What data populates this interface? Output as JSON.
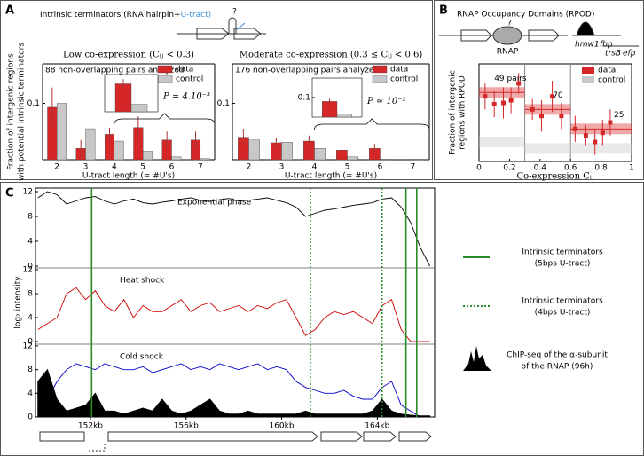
{
  "panels": {
    "a": {
      "label": "A",
      "heading": "Intrinsic terminators (RNA hairpin+",
      "heading_highlight": "U-tract)",
      "symbol": "?"
    },
    "b": {
      "label": "B",
      "heading": "RNAP Occupancy Domains (RPOD)",
      "symbol": "?",
      "rnap": "RNAP",
      "genes": [
        "hmw1",
        "fbp",
        "trsB",
        "efp"
      ]
    },
    "c": {
      "label": "C"
    }
  },
  "chart_data": [
    {
      "type": "bar",
      "title": "Low co-expression (Cᵢⱼ < 0.3)",
      "note": "88 non-overlapping pairs analyzed",
      "categories": [
        "2",
        "3",
        "4",
        "5",
        "6",
        "7"
      ],
      "series": [
        {
          "name": "data",
          "color": "#d62728",
          "values": [
            0.093,
            0.02,
            0.045,
            0.057,
            0.035,
            0.035
          ],
          "errors": [
            0.035,
            0.015,
            0.012,
            0.02,
            0.015,
            0.015
          ]
        },
        {
          "name": "control",
          "color": "#c8c8c8",
          "values": [
            0.1,
            0.055,
            0.033,
            0.015,
            0.005,
            0.002
          ]
        }
      ],
      "ylim": [
        0,
        0.17
      ],
      "yticks": [
        0.1
      ],
      "xlabel": "U-tract length (= #U's)",
      "ylabel": [
        "Fraction of intergenic regions",
        "with potential intrinsic terminators"
      ],
      "legend": "upper right",
      "inset": {
        "values": [
          0.15,
          0.04
        ],
        "errors": [
          0.025,
          0
        ],
        "ylim": [
          0,
          0.2
        ],
        "yticks": []
      },
      "p_value": "P ≃ 4.10⁻³"
    },
    {
      "type": "bar",
      "title": "Moderate co-expression (0.3 ≤ Cᵢⱼ < 0.6)",
      "note": "176 non-overlapping pairs analyzed",
      "categories": [
        "2",
        "3",
        "4",
        "5",
        "6",
        "7"
      ],
      "series": [
        {
          "name": "data",
          "color": "#d62728",
          "values": [
            0.04,
            0.03,
            0.033,
            0.017,
            0.02,
            0
          ],
          "errors": [
            0.015,
            0.008,
            0.01,
            0.008,
            0.008,
            0
          ]
        },
        {
          "name": "control",
          "color": "#c8c8c8",
          "values": [
            0.035,
            0.031,
            0.02,
            0.005,
            0.001,
            0.001
          ]
        }
      ],
      "ylim": [
        0,
        0.17
      ],
      "yticks": [
        0.1
      ],
      "xlabel": "U-tract length (= #U's)",
      "legend": "upper right",
      "inset": {
        "values": [
          0.08,
          0.015
        ],
        "errors": [
          0.015,
          0
        ],
        "ylim": [
          0,
          0.2
        ],
        "yticks": [
          0.1
        ]
      },
      "p_value": "P ≃ 10⁻²"
    },
    {
      "type": "scatter",
      "xlabel": "Co-expression Cᵢⱼ",
      "ylabel": [
        "Fraction of intergenic",
        "regions with RPOD"
      ],
      "x": [
        0.04,
        0.1,
        0.16,
        0.21,
        0.26,
        0.35,
        0.41,
        0.48,
        0.54,
        0.63,
        0.7,
        0.76,
        0.81,
        0.86
      ],
      "series": [
        {
          "name": "data",
          "color": "#d62728",
          "values": [
            0.5,
            0.44,
            0.45,
            0.47,
            0.6,
            0.4,
            0.35,
            0.5,
            0.35,
            0.25,
            0.2,
            0.15,
            0.22,
            0.3
          ],
          "errors": [
            0.1,
            0.1,
            0.12,
            0.1,
            0.08,
            0.08,
            0.12,
            0.12,
            0.1,
            0.1,
            0.08,
            0.1,
            0.1,
            0.1
          ],
          "domain_means": [
            0.53,
            0.4,
            0.25
          ]
        },
        {
          "name": "control",
          "color": "#c8c8c8",
          "domain_means": [
            0.15,
            0.1,
            0.1
          ]
        }
      ],
      "domains": [
        0,
        0.3,
        0.6,
        1
      ],
      "domain_labels": [
        "49 pairs",
        "70",
        "25"
      ],
      "xlim": [
        0,
        1
      ],
      "xticks": [
        0,
        0.2,
        0.4,
        0.6,
        0.8,
        1
      ],
      "ylim": [
        0,
        0.75
      ],
      "legend": "upper right"
    },
    {
      "type": "line",
      "ylabel": "log₂ intensity",
      "x": [
        149.8,
        150.2,
        150.6,
        151.0,
        151.4,
        151.8,
        152.2,
        152.6,
        153.0,
        153.4,
        153.8,
        154.2,
        154.6,
        155.0,
        155.4,
        155.8,
        156.2,
        156.6,
        157.0,
        157.4,
        157.8,
        158.2,
        158.6,
        159.0,
        159.4,
        159.8,
        160.2,
        160.6,
        161.0,
        161.4,
        161.8,
        162.2,
        162.6,
        163.0,
        163.4,
        163.8,
        164.2,
        164.6,
        165.0,
        165.4,
        165.8,
        166.2
      ],
      "series": [
        {
          "name": "Exponential phase",
          "color": "#000000",
          "track": 0,
          "values": [
            11,
            12,
            11.5,
            10,
            10.5,
            11,
            11.2,
            10.5,
            10,
            10.5,
            10.8,
            10.2,
            10,
            10.3,
            10.5,
            10.8,
            11,
            10.6,
            10.4,
            10.7,
            10.9,
            10.5,
            10.6,
            10.8,
            11,
            10.6,
            10.2,
            9.5,
            8,
            8.5,
            9,
            9.2,
            9.5,
            9.8,
            10,
            10.2,
            10.8,
            11,
            9.5,
            7,
            3,
            0
          ]
        },
        {
          "name": "Heat shock",
          "color": "#cc0000",
          "track": 1,
          "values": [
            2,
            3,
            4,
            8,
            9,
            7,
            8.5,
            6,
            5,
            7,
            4,
            6,
            5,
            5,
            6,
            7,
            5,
            6,
            6.5,
            5,
            5.5,
            6,
            5,
            6,
            5.5,
            6.5,
            7,
            4,
            1,
            2,
            4,
            5,
            4.5,
            5,
            4,
            3,
            6,
            7,
            2,
            0,
            0,
            0
          ]
        },
        {
          "name": "Cold shock",
          "color": "#0000cc",
          "track": 2,
          "values": [
            2,
            3,
            6,
            8,
            9,
            8.5,
            8,
            9,
            8.5,
            8,
            8,
            8.5,
            7.5,
            8,
            8.5,
            9,
            8,
            8.5,
            8,
            9,
            8.5,
            8,
            8.5,
            9,
            8,
            8.5,
            8,
            6,
            5,
            4.5,
            4,
            4,
            4.5,
            3.5,
            3,
            3,
            5,
            6,
            2,
            1,
            0,
            0
          ]
        },
        {
          "name": [
            "ChIP-seq of the α-subunit",
            "of the RNAP (96h)"
          ],
          "color": "#000000",
          "track": 2,
          "fill": true,
          "values": [
            6,
            8,
            3,
            1,
            1.5,
            2,
            4,
            1,
            1,
            0.5,
            1,
            1.5,
            1,
            3,
            1,
            0.5,
            1,
            2,
            3,
            1,
            0.5,
            0.5,
            1,
            0.5,
            0.5,
            0.5,
            0.5,
            0.5,
            1,
            0.5,
            0.5,
            0.5,
            0.5,
            0.5,
            0.5,
            1,
            3,
            1,
            0.5,
            0.3,
            0.2,
            0.2
          ]
        }
      ],
      "ylim": [
        0,
        12
      ],
      "yticks": [
        0,
        4,
        8,
        12
      ],
      "xlim": [
        149.7,
        166.4
      ],
      "xticks": [
        {
          "value": 152,
          "label": "152kb"
        },
        {
          "value": 156,
          "label": "156kb"
        },
        {
          "value": 160,
          "label": "160kb"
        },
        {
          "value": 164,
          "label": "164kb"
        }
      ],
      "terminators": [
        {
          "name": [
            "Intrinsic terminators",
            "(5bps U-tract)"
          ],
          "style": "solid",
          "color": "#2a8a2a",
          "x": [
            152.05,
            165.2,
            165.65
          ]
        },
        {
          "name": [
            "Intrinsic terminators",
            "(4bps U-tract)"
          ],
          "style": "dotted",
          "color": "#2a8a2a",
          "x": [
            161.2,
            164.2
          ]
        }
      ]
    }
  ]
}
